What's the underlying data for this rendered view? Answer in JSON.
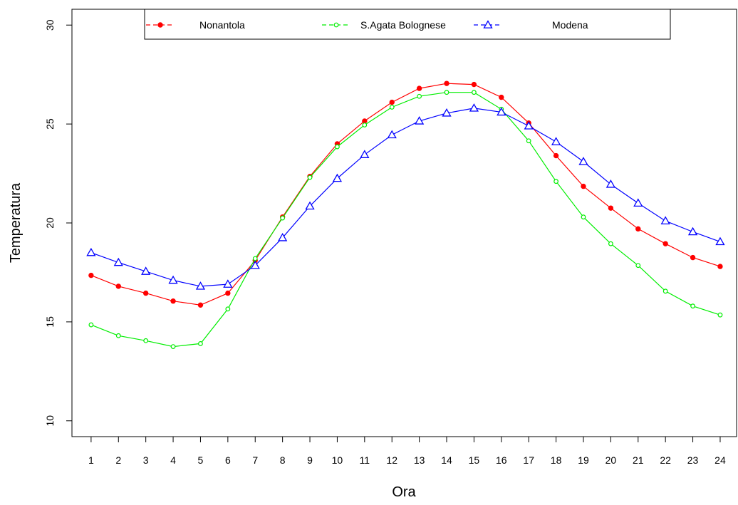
{
  "chart_data": {
    "type": "line",
    "title": "",
    "xlabel": "Ora",
    "ylabel": "Temperatura",
    "x": [
      1,
      2,
      3,
      4,
      5,
      6,
      7,
      8,
      9,
      10,
      11,
      12,
      13,
      14,
      15,
      16,
      17,
      18,
      19,
      20,
      21,
      22,
      23,
      24
    ],
    "ylim": [
      9.2,
      30.8
    ],
    "xlim": [
      0.3,
      24.6
    ],
    "y_ticks": [
      10,
      15,
      20,
      25,
      30
    ],
    "grid": false,
    "legend_position": "top",
    "series": [
      {
        "name": "Nonantola",
        "color": "#ff0000",
        "marker": "filled-circle",
        "values": [
          17.35,
          16.8,
          16.45,
          16.05,
          15.85,
          16.45,
          18.1,
          20.3,
          22.35,
          24.0,
          25.15,
          26.1,
          26.8,
          27.05,
          27.0,
          26.35,
          25.05,
          23.4,
          21.85,
          20.75,
          19.7,
          18.95,
          18.25,
          17.8
        ]
      },
      {
        "name": "S.Agata Bolognese",
        "color": "#00ee00",
        "marker": "open-circle",
        "values": [
          14.85,
          14.3,
          14.05,
          13.75,
          13.9,
          15.65,
          18.2,
          20.25,
          22.3,
          23.85,
          24.95,
          25.85,
          26.4,
          26.6,
          26.6,
          25.75,
          24.15,
          22.1,
          20.3,
          18.95,
          17.85,
          16.55,
          15.8,
          15.35
        ]
      },
      {
        "name": "Modena",
        "color": "#0000ff",
        "marker": "open-triangle",
        "values": [
          18.5,
          18.0,
          17.55,
          17.1,
          16.8,
          16.9,
          17.85,
          19.25,
          20.85,
          22.25,
          23.45,
          24.45,
          25.15,
          25.55,
          25.8,
          25.6,
          24.9,
          24.1,
          23.1,
          21.95,
          21.0,
          20.1,
          19.55,
          19.05
        ]
      }
    ]
  }
}
